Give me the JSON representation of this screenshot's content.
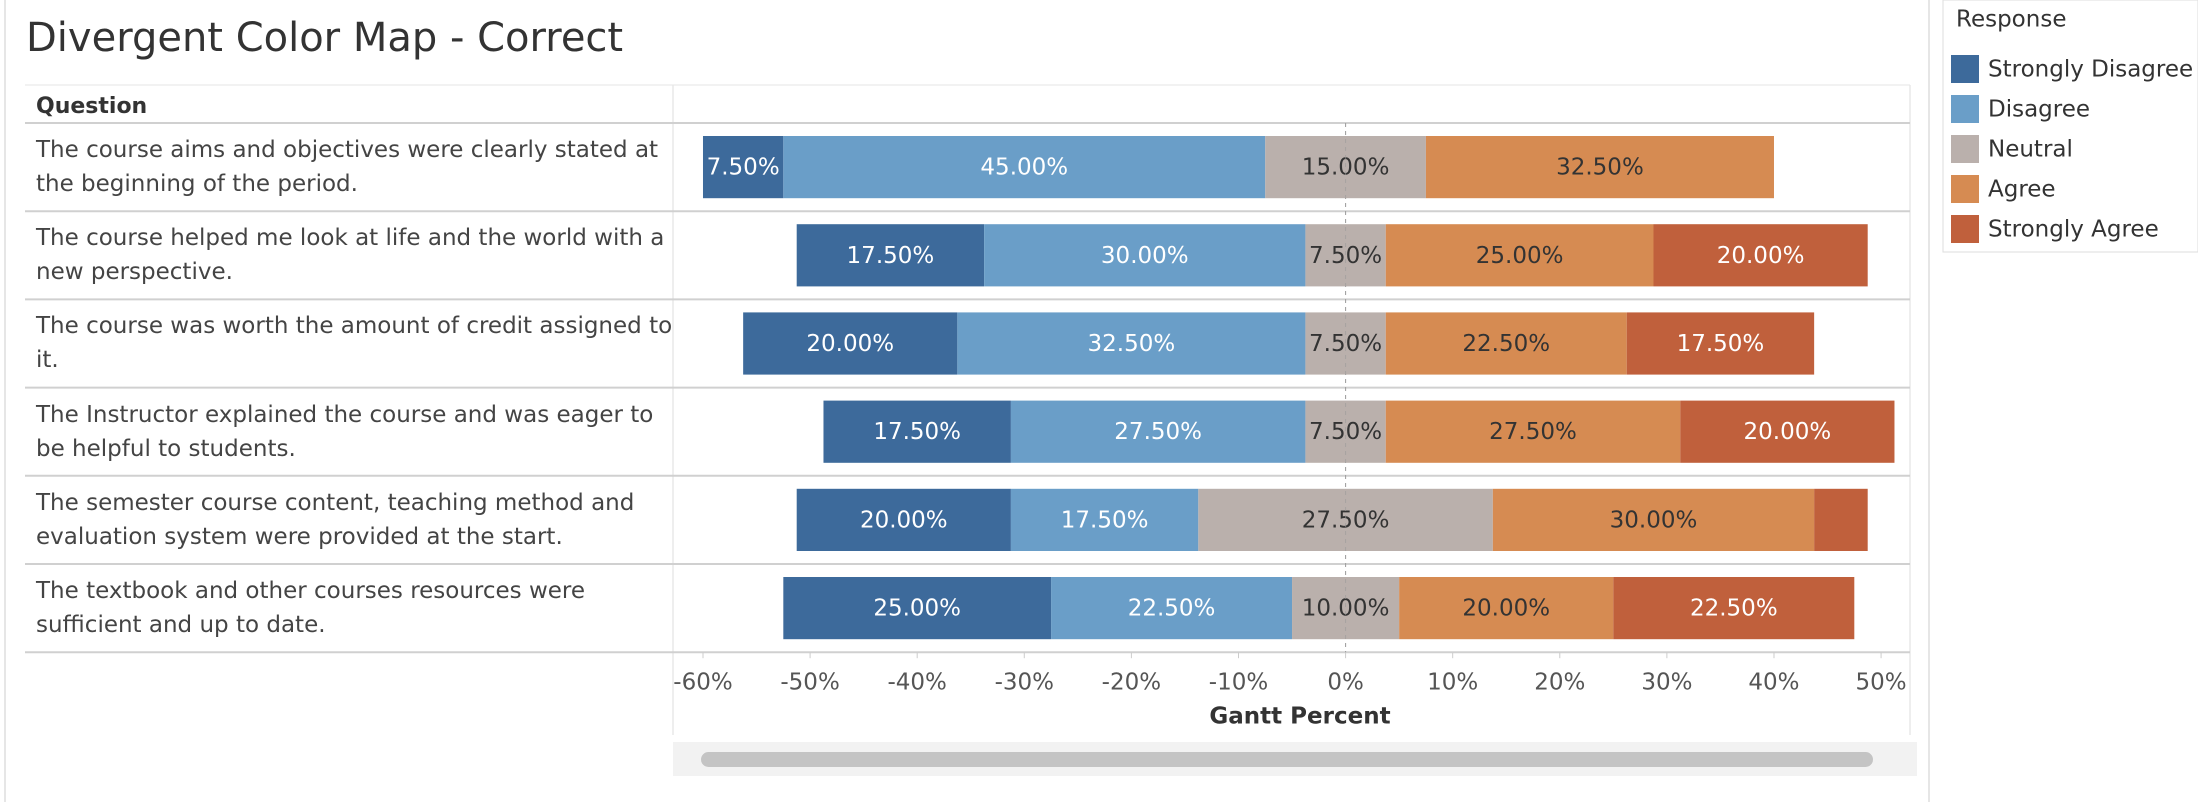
{
  "chart_data": {
    "type": "diverging-bar",
    "title": "Divergent Color Map - Correct",
    "category_header": "Question",
    "categories": [
      "The course aims and objectives were clearly stated at the beginning of the period.",
      "The course helped me look at life and the world with a new perspective.",
      "The course was worth the amount of credit assigned to it.",
      "The Instructor explained the course and was eager to be helpful to students.",
      "The semester course content, teaching method and evaluation system were provided at the start.",
      "The textbook and other courses resources were sufficient and up to date."
    ],
    "xlabel": "Gantt Percent",
    "legend_title": "Response",
    "center_series": "Neutral",
    "series": [
      {
        "name": "Strongly Disagree",
        "color": "#3d6a9b",
        "label_color": "#ffffff",
        "values": [
          7.5,
          17.5,
          20,
          17.5,
          20,
          25
        ],
        "value_labels": [
          "7.50%",
          "17.50%",
          "20.00%",
          "17.50%",
          "20.00%",
          "25.00%"
        ]
      },
      {
        "name": "Disagree",
        "color": "#6a9ec8",
        "label_color": "#ffffff",
        "values": [
          45,
          30,
          32.5,
          27.5,
          17.5,
          22.5
        ],
        "value_labels": [
          "45.00%",
          "30.00%",
          "32.50%",
          "27.50%",
          "17.50%",
          "22.50%"
        ]
      },
      {
        "name": "Neutral",
        "color": "#bab0ac",
        "label_color": "#333333",
        "values": [
          15,
          7.5,
          7.5,
          7.5,
          27.5,
          10
        ],
        "value_labels": [
          "15.00%",
          "7.50%",
          "7.50%",
          "7.50%",
          "27.50%",
          "10.00%"
        ]
      },
      {
        "name": "Agree",
        "color": "#d68b52",
        "label_color": "#333333",
        "values": [
          32.5,
          25,
          22.5,
          27.5,
          30,
          20
        ],
        "value_labels": [
          "32.50%",
          "25.00%",
          "22.50%",
          "27.50%",
          "30.00%",
          "20.00%"
        ]
      },
      {
        "name": "Strongly Agree",
        "color": "#c0603c",
        "label_color": "#ffffff",
        "values": [
          0,
          20,
          17.5,
          20,
          5,
          22.5
        ],
        "value_labels": [
          null,
          "20.00%",
          "17.50%",
          "20.00%",
          null,
          "22.50%"
        ]
      }
    ],
    "xlim": [
      -62.8,
      52.7
    ],
    "xticks": [
      {
        "value": -60,
        "label": "-60%"
      },
      {
        "value": -50,
        "label": "-50%"
      },
      {
        "value": -40,
        "label": "-40%"
      },
      {
        "value": -30,
        "label": "-30%"
      },
      {
        "value": -20,
        "label": "-20%"
      },
      {
        "value": -10,
        "label": "-10%"
      },
      {
        "value": 0,
        "label": "0%"
      },
      {
        "value": 10,
        "label": "10%"
      },
      {
        "value": 20,
        "label": "20%"
      },
      {
        "value": 30,
        "label": "30%"
      },
      {
        "value": 40,
        "label": "40%"
      },
      {
        "value": 50,
        "label": "50%"
      }
    ]
  }
}
